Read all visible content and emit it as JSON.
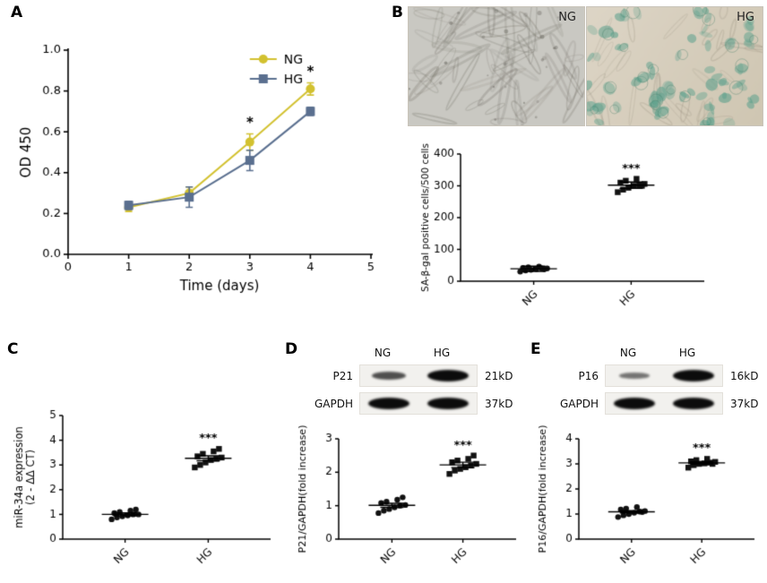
{
  "panels": {
    "a": {
      "label": "A"
    },
    "b": {
      "label": "B",
      "images": [
        {
          "label": "NG"
        },
        {
          "label": "HG"
        }
      ]
    },
    "c": {
      "label": "C"
    },
    "d": {
      "label": "D"
    },
    "e": {
      "label": "E"
    }
  },
  "colors": {
    "ng": "#d2c12f",
    "hg": "#5a6f8f",
    "points": "#111111"
  },
  "chart_data": [
    {
      "id": "proliferation",
      "type": "line",
      "title": "",
      "xlabel": "Time (days)",
      "ylabel": "OD 450",
      "x": [
        1,
        2,
        3,
        4
      ],
      "xlim": [
        0,
        5
      ],
      "ylim": [
        0,
        1.0
      ],
      "xticks": [
        0,
        1,
        2,
        3,
        4,
        5
      ],
      "yticks": [
        0.0,
        0.2,
        0.4,
        0.6,
        0.8,
        1.0
      ],
      "grid": false,
      "legend_position": "upper-right-inside",
      "series": [
        {
          "name": "NG",
          "marker": "circle",
          "color": "#d2c12f",
          "values": [
            0.23,
            0.3,
            0.55,
            0.81
          ],
          "errors": [
            0.02,
            0.03,
            0.04,
            0.03
          ]
        },
        {
          "name": "HG",
          "marker": "square",
          "color": "#5a6f8f",
          "values": [
            0.24,
            0.28,
            0.46,
            0.7
          ],
          "errors": [
            0.02,
            0.05,
            0.05,
            0.02
          ]
        }
      ],
      "annotations": [
        {
          "x": 3,
          "y": 0.625,
          "text": "*"
        },
        {
          "x": 4,
          "y": 0.875,
          "text": "*"
        }
      ]
    },
    {
      "id": "sa-b-gal",
      "type": "scatter",
      "ylabel": "SA-β-gal positive cells/500 cells",
      "categories": [
        "NG",
        "HG"
      ],
      "ylim": [
        0,
        400
      ],
      "yticks": [
        0,
        100,
        200,
        300,
        400
      ],
      "groups": [
        {
          "name": "NG",
          "marker": "circle",
          "values": [
            30,
            34,
            36,
            38,
            40,
            40,
            42,
            44,
            46,
            38
          ],
          "mean": 39,
          "sem": 8
        },
        {
          "name": "HG",
          "marker": "square",
          "values": [
            280,
            288,
            294,
            300,
            302,
            306,
            310,
            316,
            322,
            300
          ],
          "mean": 302,
          "sem": 10
        }
      ],
      "significance": {
        "group": "HG",
        "text": "***"
      }
    },
    {
      "id": "mir34a",
      "type": "scatter",
      "ylabel": [
        "miR-34a expression",
        "(2 - ΔΔ CT)"
      ],
      "categories": [
        "NG",
        "HG"
      ],
      "ylim": [
        0,
        5
      ],
      "yticks": [
        0,
        1,
        2,
        3,
        4,
        5
      ],
      "groups": [
        {
          "name": "NG",
          "marker": "circle",
          "values": [
            0.8,
            0.88,
            0.92,
            0.96,
            1.0,
            1.0,
            1.05,
            1.1,
            1.15,
            1.2
          ],
          "mean": 1.0,
          "sem": 0.06
        },
        {
          "name": "HG",
          "marker": "square",
          "values": [
            2.9,
            3.0,
            3.1,
            3.2,
            3.25,
            3.3,
            3.35,
            3.45,
            3.55,
            3.65
          ],
          "mean": 3.27,
          "sem": 0.1
        }
      ],
      "significance": {
        "group": "HG",
        "text": "***"
      }
    },
    {
      "id": "p21",
      "type": "scatter",
      "ylabel": "P21/GAPDH(fold increase)",
      "categories": [
        "NG",
        "HG"
      ],
      "ylim": [
        0,
        3
      ],
      "yticks": [
        0,
        1,
        2,
        3
      ],
      "groups": [
        {
          "name": "NG",
          "marker": "circle",
          "values": [
            0.78,
            0.85,
            0.9,
            0.95,
            1.0,
            1.02,
            1.08,
            1.12,
            1.18,
            1.25
          ],
          "mean": 1.01,
          "sem": 0.06
        },
        {
          "name": "HG",
          "marker": "square",
          "values": [
            1.95,
            2.05,
            2.1,
            2.15,
            2.2,
            2.25,
            2.3,
            2.35,
            2.4,
            2.5
          ],
          "mean": 2.22,
          "sem": 0.08
        }
      ],
      "significance": {
        "group": "HG",
        "text": "***"
      }
    },
    {
      "id": "p16",
      "type": "scatter",
      "ylabel": "P16/GAPDH(fold increase)",
      "categories": [
        "NG",
        "HG"
      ],
      "ylim": [
        0,
        4
      ],
      "yticks": [
        0,
        1,
        2,
        3,
        4
      ],
      "groups": [
        {
          "name": "NG",
          "marker": "circle",
          "values": [
            0.88,
            0.95,
            1.0,
            1.05,
            1.1,
            1.12,
            1.18,
            1.22,
            1.28,
            1.08
          ],
          "mean": 1.09,
          "sem": 0.05
        },
        {
          "name": "HG",
          "marker": "square",
          "values": [
            2.85,
            2.95,
            3.0,
            3.02,
            3.05,
            3.08,
            3.1,
            3.15,
            3.2,
            3.0
          ],
          "mean": 3.04,
          "sem": 0.05
        }
      ],
      "significance": {
        "group": "HG",
        "text": "***"
      }
    }
  ],
  "blots": [
    {
      "panel": "d",
      "lanes": [
        "NG",
        "HG"
      ],
      "rows": [
        {
          "protein": "P21",
          "size": "21kD",
          "intensities": [
            0.55,
            1.0
          ]
        },
        {
          "protein": "GAPDH",
          "size": "37kD",
          "intensities": [
            1.0,
            1.0
          ]
        }
      ]
    },
    {
      "panel": "e",
      "lanes": [
        "NG",
        "HG"
      ],
      "rows": [
        {
          "protein": "P16",
          "size": "16kD",
          "intensities": [
            0.3,
            1.0
          ]
        },
        {
          "protein": "GAPDH",
          "size": "37kD",
          "intensities": [
            1.0,
            1.0
          ]
        }
      ]
    }
  ]
}
